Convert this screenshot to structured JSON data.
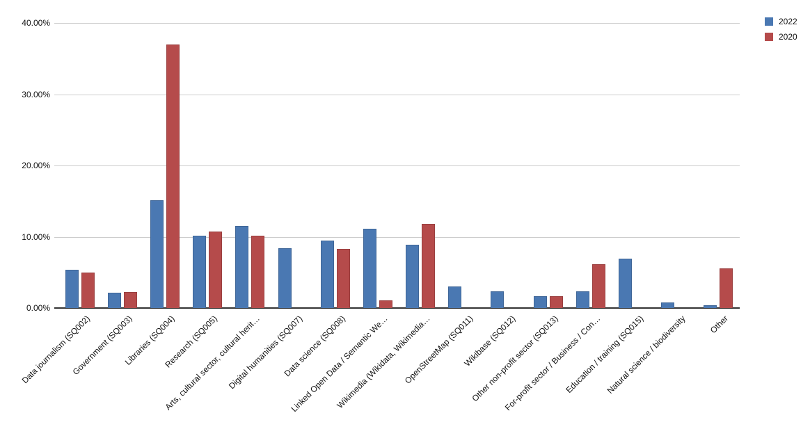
{
  "chart_data": {
    "type": "bar",
    "title": "",
    "xlabel": "",
    "ylabel": "",
    "categories": [
      "Data journalism (SQ002)",
      "Government (SQ003)",
      "Libraries (SQ004)",
      "Research (SQ005)",
      "Arts, cultural sector, cultural herit…",
      "Digital humanities (SQ007)",
      "Data science (SQ008)",
      "Linked Open Data / Semantic We…",
      "Wikimedia (Wikidata, Wikimedia…",
      "OpenStreetMap (SQ011)",
      "Wikibase (SQ012)",
      "Other non-profit sector (SQ013)",
      "For-profit sector / Business / Con…",
      "Education / training (SQ015)",
      "Natural science / biodiversity",
      "Other"
    ],
    "series": [
      {
        "name": "2022",
        "color": "#4a78b2",
        "values": [
          5.4,
          2.1,
          15.1,
          10.1,
          11.5,
          8.4,
          9.5,
          11.1,
          8.9,
          3.0,
          2.3,
          1.7,
          2.3,
          6.9,
          0.8,
          0.4
        ]
      },
      {
        "name": "2020",
        "color": "#b54b4b",
        "values": [
          5.0,
          2.2,
          37.0,
          10.7,
          10.1,
          0,
          8.3,
          1.1,
          11.8,
          0,
          0,
          1.7,
          6.1,
          0,
          0,
          5.6
        ]
      }
    ],
    "ylim": [
      0,
      40
    ],
    "yticks": [
      {
        "value": 0,
        "label": "0.00%"
      },
      {
        "value": 10,
        "label": "10.00%"
      },
      {
        "value": 20,
        "label": "20.00%"
      },
      {
        "value": 30,
        "label": "30.00%"
      },
      {
        "value": 40,
        "label": "40.00%"
      }
    ],
    "grid": true,
    "legend_position": "top-right"
  },
  "colors": {
    "background": "#ffffff",
    "gridline": "#cccccc",
    "axis_line": "#333333",
    "text": "#111111"
  }
}
